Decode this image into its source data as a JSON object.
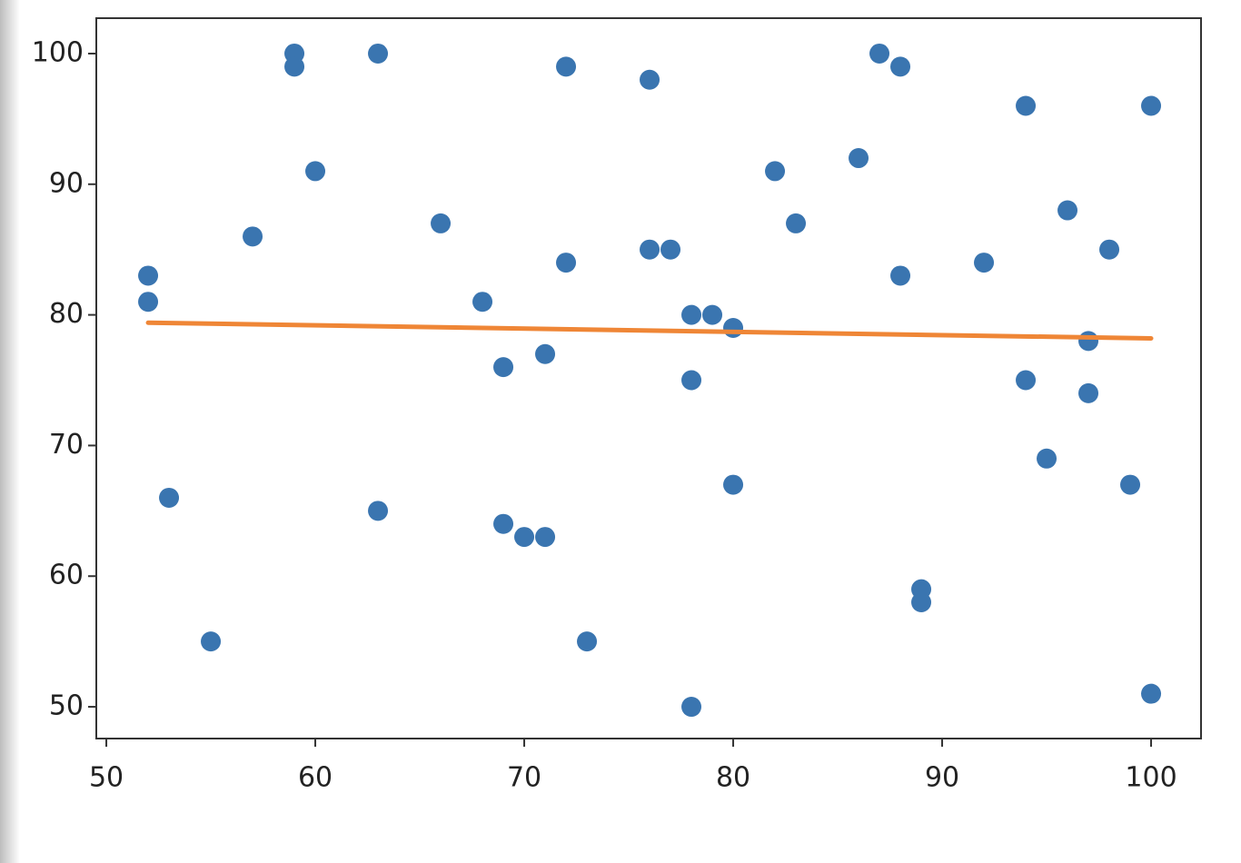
{
  "chart_data": {
    "type": "scatter",
    "xlim": [
      49.52,
      102.39
    ],
    "ylim": [
      47.57,
      102.71
    ],
    "xticks": [
      50,
      60,
      70,
      80,
      90,
      100
    ],
    "yticks": [
      50,
      60,
      70,
      80,
      90,
      100
    ],
    "series": [
      {
        "type": "scatter",
        "color": "#3a75b0",
        "x": [
          52,
          52,
          53,
          55,
          57,
          59,
          59,
          60,
          63,
          63,
          66,
          68,
          69,
          69,
          70,
          71,
          71,
          72,
          72,
          73,
          76,
          76,
          77,
          78,
          78,
          78,
          79,
          80,
          80,
          82,
          83,
          86,
          87,
          88,
          88,
          89,
          89,
          92,
          94,
          94,
          95,
          96,
          97,
          97,
          98,
          99,
          100,
          100
        ],
        "values": [
          83,
          81,
          66,
          55,
          86,
          100,
          99,
          91,
          100,
          65,
          87,
          81,
          76,
          64,
          63,
          77,
          63,
          99,
          84,
          55,
          98,
          85,
          85,
          80,
          75,
          50,
          80,
          79,
          67,
          91,
          87,
          92,
          100,
          99,
          83,
          59,
          58,
          84,
          96,
          75,
          69,
          88,
          78,
          74,
          85,
          67,
          96,
          51
        ]
      },
      {
        "type": "line",
        "color": "#ef8636",
        "x": [
          52,
          100
        ],
        "values": [
          79.4,
          78.2
        ]
      }
    ]
  }
}
